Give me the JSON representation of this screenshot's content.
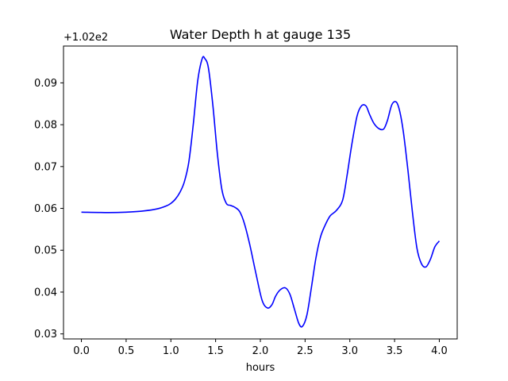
{
  "chart_data": {
    "type": "line",
    "title": "Water Depth h at gauge 135",
    "xlabel": "hours",
    "ylabel": "",
    "offset_text": "+1.02e2",
    "xlim": [
      -0.2,
      4.2
    ],
    "ylim": [
      0.0288,
      0.0988
    ],
    "xticks": [
      0.0,
      0.5,
      1.0,
      1.5,
      2.0,
      2.5,
      3.0,
      3.5,
      4.0
    ],
    "xtick_labels": [
      "0.0",
      "0.5",
      "1.0",
      "1.5",
      "2.0",
      "2.5",
      "3.0",
      "3.5",
      "4.0"
    ],
    "yticks": [
      0.03,
      0.04,
      0.05,
      0.06,
      0.07,
      0.08,
      0.09
    ],
    "ytick_labels": [
      "0.03",
      "0.04",
      "0.05",
      "0.06",
      "0.07",
      "0.08",
      "0.09"
    ],
    "grid": false,
    "series": [
      {
        "color": "#0000ff",
        "x": [
          0.0,
          0.3,
          0.5,
          0.7,
          0.85,
          0.95,
          1.0,
          1.05,
          1.1,
          1.15,
          1.2,
          1.25,
          1.3,
          1.35,
          1.38,
          1.42,
          1.47,
          1.52,
          1.57,
          1.62,
          1.67,
          1.72,
          1.77,
          1.82,
          1.88,
          1.95,
          2.02,
          2.08,
          2.13,
          2.17,
          2.22,
          2.28,
          2.33,
          2.38,
          2.43,
          2.47,
          2.52,
          2.57,
          2.62,
          2.67,
          2.72,
          2.78,
          2.85,
          2.92,
          2.97,
          3.02,
          3.08,
          3.13,
          3.18,
          3.22,
          3.27,
          3.33,
          3.38,
          3.42,
          3.47,
          3.52,
          3.56,
          3.6,
          3.65,
          3.7,
          3.75,
          3.8,
          3.85,
          3.9,
          3.95,
          4.0
        ],
        "y": [
          0.0591,
          0.059,
          0.0591,
          0.0594,
          0.0599,
          0.0606,
          0.0612,
          0.0622,
          0.0638,
          0.0663,
          0.071,
          0.08,
          0.0905,
          0.0958,
          0.0958,
          0.0935,
          0.0845,
          0.073,
          0.0645,
          0.0612,
          0.0607,
          0.0602,
          0.0592,
          0.0565,
          0.0515,
          0.0445,
          0.038,
          0.0362,
          0.037,
          0.039,
          0.0405,
          0.041,
          0.0395,
          0.036,
          0.0325,
          0.0318,
          0.0345,
          0.041,
          0.048,
          0.053,
          0.0558,
          0.0582,
          0.0595,
          0.062,
          0.068,
          0.075,
          0.082,
          0.0845,
          0.0845,
          0.0825,
          0.0803,
          0.079,
          0.079,
          0.081,
          0.0848,
          0.0854,
          0.083,
          0.078,
          0.069,
          0.059,
          0.0505,
          0.0468,
          0.046,
          0.0478,
          0.0508,
          0.0522
        ]
      }
    ]
  }
}
